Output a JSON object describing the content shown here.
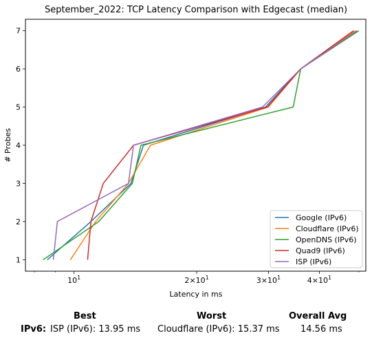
{
  "chart_data": {
    "type": "line",
    "title": "September_2022: TCP Latency Comparison with Edgecast (median)",
    "xlabel": "Latency in ms",
    "ylabel": "# Probes",
    "xscale": "log",
    "xlim": [
      7.6,
      52
    ],
    "ylim": [
      0.7,
      7.3
    ],
    "xticks": [
      {
        "value": 10,
        "base": "10",
        "exp": "1",
        "coef": ""
      },
      {
        "value": 20,
        "base": "10",
        "exp": "1",
        "coef": "2×"
      },
      {
        "value": 30,
        "base": "10",
        "exp": "1",
        "coef": "3×"
      },
      {
        "value": 40,
        "base": "10",
        "exp": "1",
        "coef": "4×"
      }
    ],
    "yticks": [
      1,
      2,
      3,
      4,
      5,
      6,
      7
    ],
    "grid": false,
    "legend_position": "lower-right",
    "series": [
      {
        "name": "Google (IPv6)",
        "color": "#1f77b4",
        "points": [
          [
            8.6,
            1
          ],
          [
            11.0,
            2
          ],
          [
            13.8,
            3
          ],
          [
            14.8,
            4
          ],
          [
            29.5,
            5
          ],
          [
            36.0,
            6
          ],
          [
            49.5,
            7
          ]
        ]
      },
      {
        "name": "Cloudflare (IPv6)",
        "color": "#ff7f0e",
        "points": [
          [
            9.8,
            1
          ],
          [
            11.3,
            2
          ],
          [
            13.6,
            3
          ],
          [
            15.4,
            4
          ],
          [
            30.0,
            5
          ],
          [
            36.0,
            6
          ],
          [
            49.0,
            7
          ]
        ]
      },
      {
        "name": "OpenDNS (IPv6)",
        "color": "#2ca02c",
        "points": [
          [
            8.4,
            1
          ],
          [
            11.5,
            2
          ],
          [
            13.9,
            3
          ],
          [
            14.6,
            4
          ],
          [
            34.5,
            5
          ],
          [
            36.0,
            6
          ],
          [
            50.0,
            7
          ]
        ]
      },
      {
        "name": "Quad9 (IPv6)",
        "color": "#d62728",
        "points": [
          [
            10.8,
            1
          ],
          [
            11.0,
            2
          ],
          [
            11.8,
            3
          ],
          [
            14.0,
            4
          ],
          [
            29.8,
            5
          ],
          [
            36.0,
            6
          ],
          [
            48.5,
            7
          ]
        ]
      },
      {
        "name": "ISP (IPv6)",
        "color": "#9467bd",
        "points": [
          [
            8.9,
            1
          ],
          [
            9.1,
            2
          ],
          [
            13.6,
            3
          ],
          [
            14.0,
            4
          ],
          [
            29.0,
            5
          ],
          [
            36.0,
            6
          ],
          [
            49.5,
            7
          ]
        ]
      }
    ]
  },
  "summary": {
    "best_header": "Best",
    "worst_header": "Worst",
    "avg_header": "Overall Avg",
    "row_label": "IPv6",
    "row_sep": ":",
    "best_value": "ISP (IPv6): 13.95 ms",
    "worst_value": "Cloudflare (IPv6): 15.37 ms",
    "avg_value": "14.56 ms"
  }
}
